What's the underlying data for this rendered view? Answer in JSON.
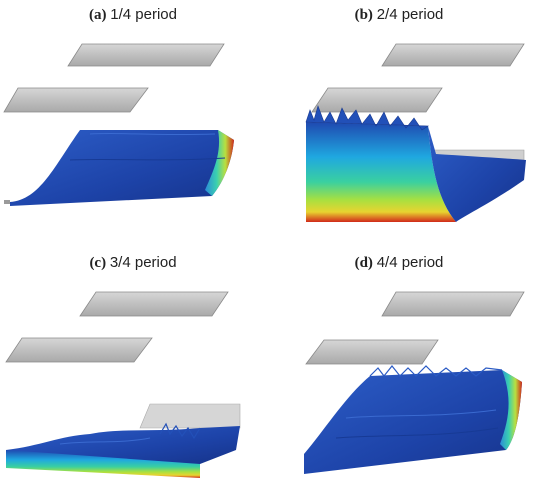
{
  "panels": [
    {
      "label": "(a)",
      "text": "1/4 period"
    },
    {
      "label": "(b)",
      "text": "2/4 period"
    },
    {
      "label": "(c)",
      "text": "3/4 period"
    },
    {
      "label": "(d)",
      "text": "4/4 period"
    }
  ],
  "colors": {
    "plate_fill": "#c4c4c4",
    "plate_edge": "#8a8a8a",
    "wave_blue": "#1f49b0",
    "wave_cyan": "#1fc8e0",
    "wave_green": "#6ad84a",
    "wave_yellow": "#e8d430",
    "wave_red": "#d12a1a"
  }
}
